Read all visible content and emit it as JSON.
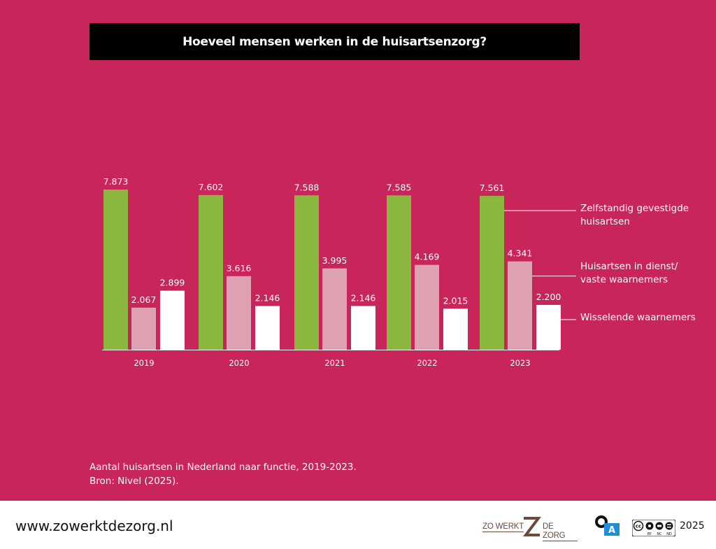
{
  "title": "Hoeveel mensen werken in de huisartsenzorg?",
  "caption": {
    "line1": "Aantal huisartsen in Nederland naar functie, 2019-2023.",
    "line2": "Bron: Nivel (2025)."
  },
  "footer": {
    "url": "www.zowerktdezorg.nl",
    "logo_left": "ZO WERKT",
    "logo_right": "DE ZORG",
    "year": "2025",
    "cc_labels": [
      "BY",
      "NC",
      "ND"
    ],
    "oa_label": "A"
  },
  "colors": {
    "background": "#c8265b",
    "title_bar": "#000000",
    "series_1": "#8cb73f",
    "series_2": "#dfa2b2",
    "series_3": "#ffffff"
  },
  "chart_data": {
    "type": "bar",
    "categories": [
      "2019",
      "2020",
      "2021",
      "2022",
      "2023"
    ],
    "series": [
      {
        "name": "Zelfstandig gevestigde huisartsen",
        "name_lines": [
          "Zelfstandig gevestigde",
          "huisartsen"
        ],
        "values": [
          7873,
          7602,
          7588,
          7585,
          7561
        ],
        "labels": [
          "7.873",
          "7.602",
          "7.588",
          "7.585",
          "7.561"
        ]
      },
      {
        "name": "Huisartsen in dienst/ vaste waarnemers",
        "name_lines": [
          "Huisartsen in dienst/",
          "vaste waarnemers"
        ],
        "values": [
          2067,
          3616,
          3995,
          4169,
          4341
        ],
        "labels": [
          "2.067",
          "3.616",
          "3.995",
          "4.169",
          "4.341"
        ]
      },
      {
        "name": "Wisselende waarnemers",
        "name_lines": [
          "Wisselende waarnemers"
        ],
        "values": [
          2899,
          2146,
          2146,
          2015,
          2200
        ],
        "labels": [
          "2.899",
          "2.146",
          "2.146",
          "2.015",
          "2.200"
        ]
      }
    ],
    "ylim": [
      0,
      8000
    ],
    "grid": false,
    "legend": "right, attached to last group"
  }
}
